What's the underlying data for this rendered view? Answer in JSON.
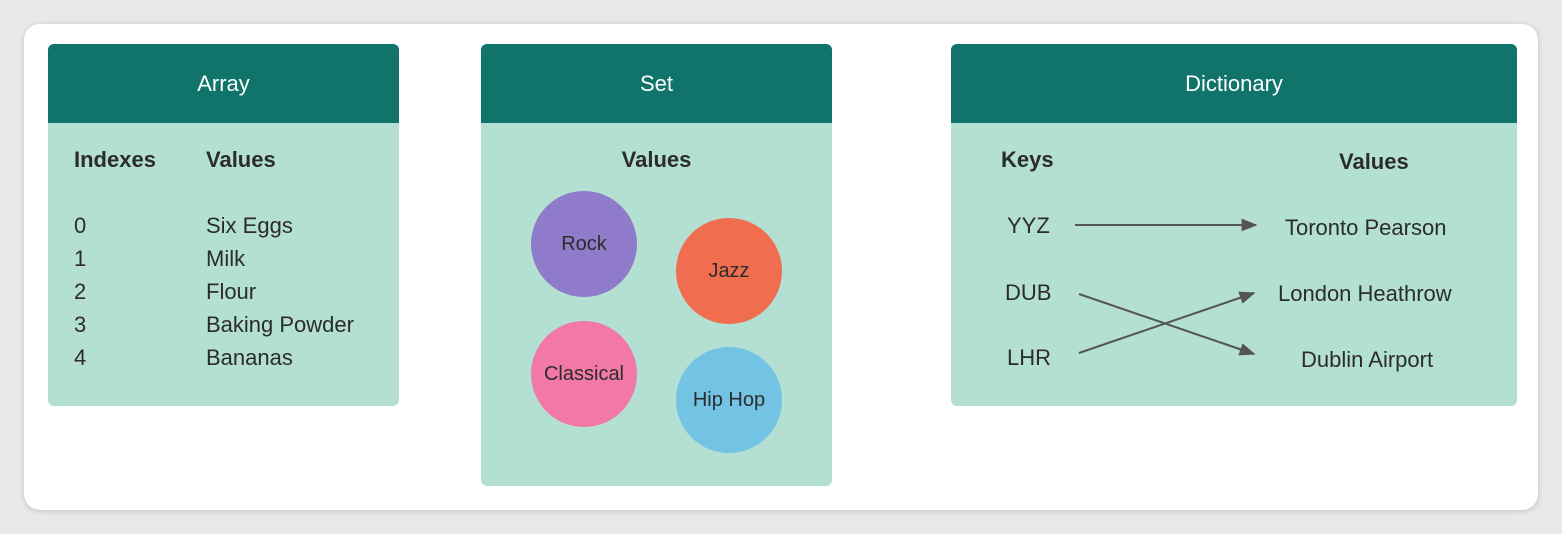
{
  "array": {
    "title": "Array",
    "indexes_header": "Indexes",
    "values_header": "Values",
    "rows": [
      {
        "index": "0",
        "value": "Six Eggs"
      },
      {
        "index": "1",
        "value": "Milk"
      },
      {
        "index": "2",
        "value": "Flour"
      },
      {
        "index": "3",
        "value": "Baking Powder"
      },
      {
        "index": "4",
        "value": "Bananas"
      }
    ]
  },
  "set": {
    "title": "Set",
    "values_header": "Values",
    "items": [
      {
        "label": "Rock",
        "color": "#8f7bc9"
      },
      {
        "label": "Jazz",
        "color": "#f06e4f"
      },
      {
        "label": "Classical",
        "color": "#f279a5"
      },
      {
        "label": "Hip Hop",
        "color": "#72c3e4"
      }
    ]
  },
  "dictionary": {
    "title": "Dictionary",
    "keys_header": "Keys",
    "values_header": "Values",
    "keys": [
      "YYZ",
      "DUB",
      "LHR"
    ],
    "values": [
      "Toronto Pearson",
      "London Heathrow",
      "Dublin Airport"
    ],
    "mappings": [
      {
        "key": "YYZ",
        "value": "Toronto Pearson"
      },
      {
        "key": "DUB",
        "value": "Dublin Airport"
      },
      {
        "key": "LHR",
        "value": "London Heathrow"
      }
    ],
    "arrow_color": "#555555"
  }
}
